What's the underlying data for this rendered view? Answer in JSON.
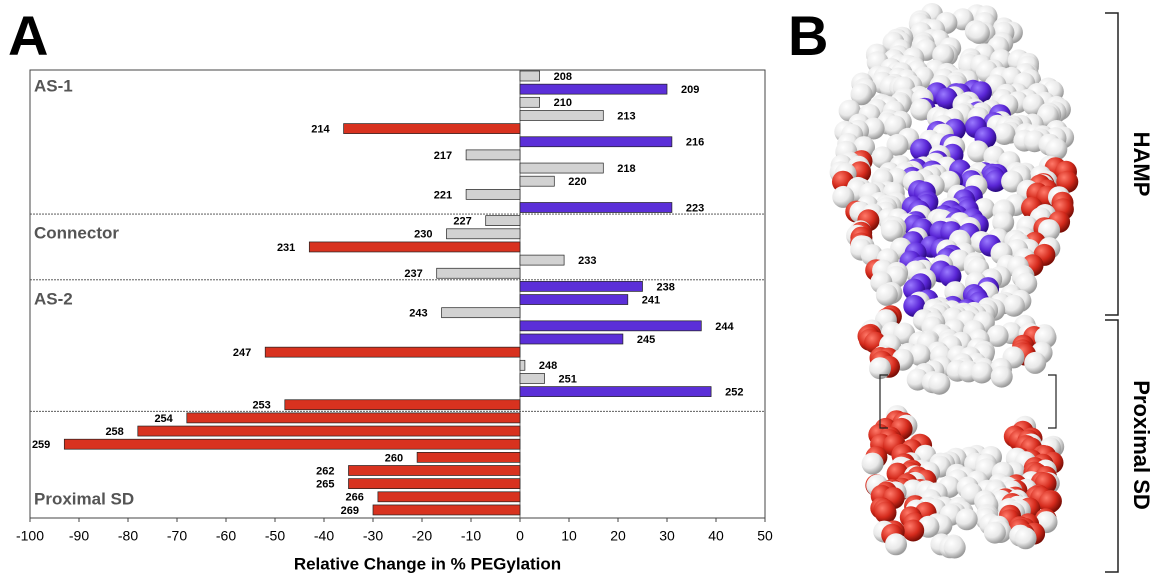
{
  "panel_a": {
    "letter": "A"
  },
  "panel_b": {
    "letter": "B",
    "labels": [
      "HAMP",
      "Proximal SD"
    ]
  },
  "chart_data": {
    "type": "hbar",
    "xlabel": "Relative Change in % PEGylation",
    "categories": [
      "208",
      "209",
      "210",
      "213",
      "214",
      "216",
      "217",
      "218",
      "220",
      "221",
      "223",
      "227",
      "230",
      "231",
      "233",
      "237",
      "238",
      "241",
      "243",
      "244",
      "245",
      "247",
      "248",
      "251",
      "252",
      "253",
      "254",
      "258",
      "259",
      "260",
      "262",
      "265",
      "266",
      "269"
    ],
    "values": [
      4,
      30,
      4,
      17,
      -36,
      31,
      -11,
      17,
      7,
      -11,
      31,
      -7,
      -15,
      -43,
      9,
      -17,
      25,
      22,
      -16,
      37,
      21,
      -52,
      1,
      5,
      39,
      -48,
      -68,
      -78,
      -93,
      -21,
      -35,
      -35,
      -29,
      -30
    ],
    "colors": [
      "#d2d2d2",
      "#5b2fd8",
      "#d2d2d2",
      "#d2d2d2",
      "#d8321f",
      "#5b2fd8",
      "#d2d2d2",
      "#d2d2d2",
      "#d2d2d2",
      "#d2d2d2",
      "#5b2fd8",
      "#d2d2d2",
      "#d2d2d2",
      "#d8321f",
      "#d2d2d2",
      "#d2d2d2",
      "#5b2fd8",
      "#5b2fd8",
      "#d2d2d2",
      "#5b2fd8",
      "#5b2fd8",
      "#d8321f",
      "#d2d2d2",
      "#d2d2d2",
      "#5b2fd8",
      "#d8321f",
      "#d8321f",
      "#d8321f",
      "#d8321f",
      "#d8321f",
      "#d8321f",
      "#d8321f",
      "#d8321f",
      "#d8321f"
    ],
    "regions": [
      {
        "label": "AS-1",
        "from": "208"
      },
      {
        "label": "Connector",
        "from": "227"
      },
      {
        "label": "AS-2",
        "from": "238"
      },
      {
        "label": "Proximal SD",
        "from": "254"
      }
    ],
    "xlim": [
      -100,
      50
    ],
    "xticks": [
      -100,
      -90,
      -80,
      -70,
      -60,
      -50,
      -40,
      -30,
      -20,
      -10,
      0,
      10,
      20,
      30,
      40,
      50
    ]
  }
}
